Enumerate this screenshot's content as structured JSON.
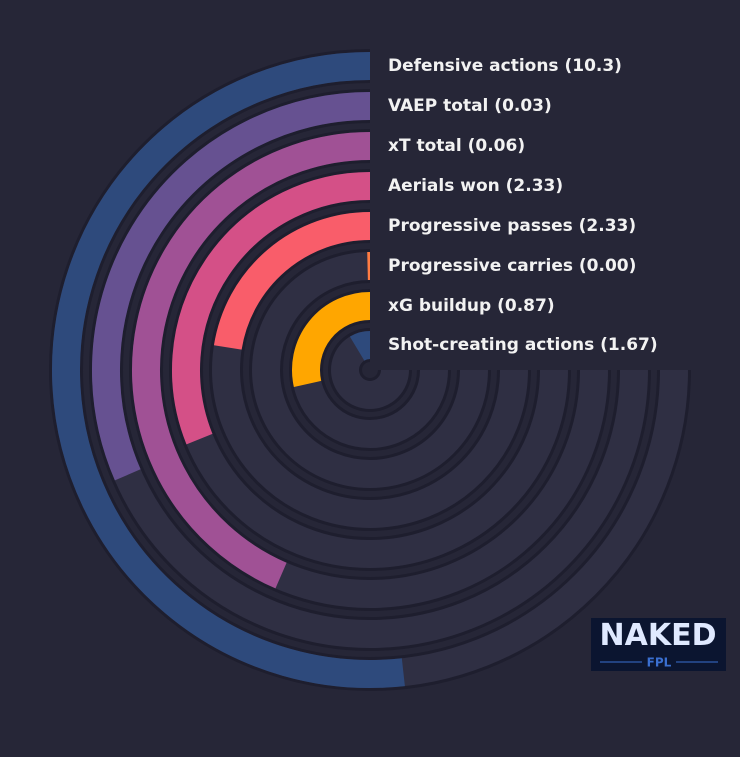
{
  "chart_data": {
    "type": "radial-bar",
    "lim": [
      0,
      100
    ],
    "series": [
      {
        "label": "Defensive actions (10.3)",
        "value": 69,
        "color": "#2e4a7c"
      },
      {
        "label": "VAEP total (0.03)",
        "value": 42,
        "color": "#665191"
      },
      {
        "label": "xT total (0.06)",
        "value": 58,
        "color": "#a05195"
      },
      {
        "label": "Aerials won (2.33)",
        "value": 41.5,
        "color": "#d45087"
      },
      {
        "label": "Progressive passes (2.33)",
        "value": 30,
        "color": "#f95d6a"
      },
      {
        "label": "Progressive carries (0.00)",
        "value": 0.5,
        "color": "#ff7c43"
      },
      {
        "label": "xG buildup (0.87)",
        "value": 38,
        "color": "#ffa600"
      },
      {
        "label": "Shot-creating actions (1.67)",
        "value": 11.5,
        "color": "#2e4a7c"
      }
    ]
  },
  "logo": {
    "title": "NAKED",
    "subtitle": "FPL"
  }
}
